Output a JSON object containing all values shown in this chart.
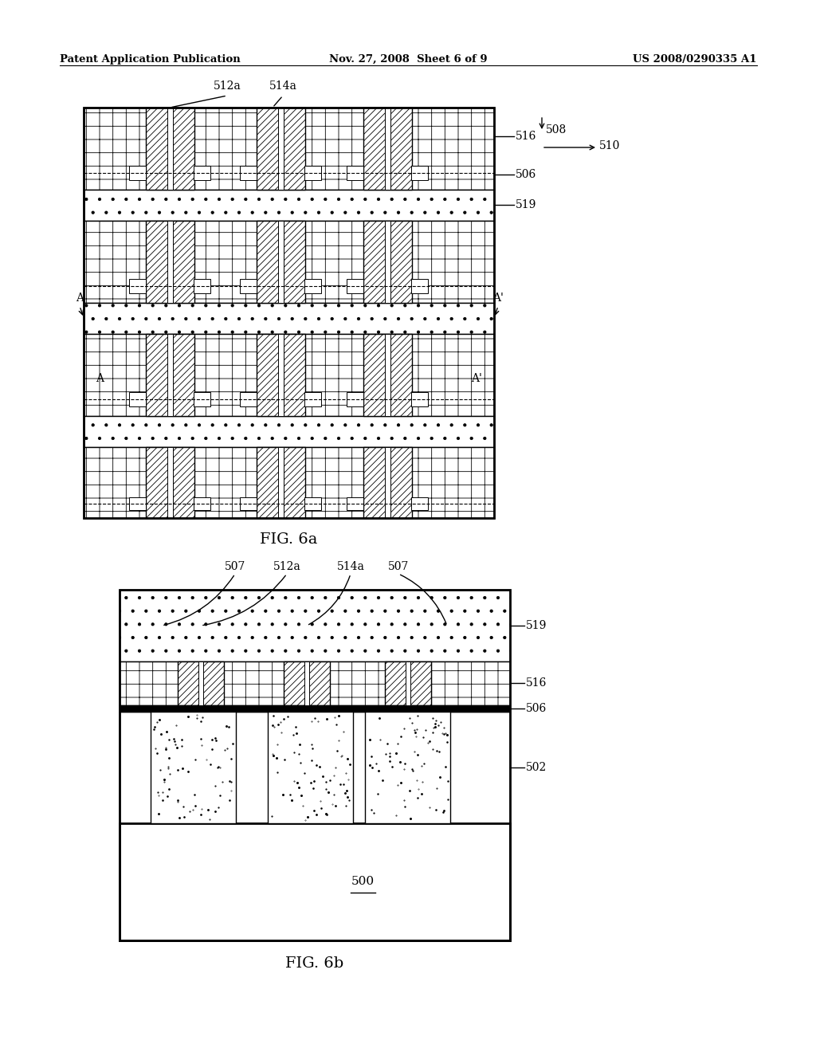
{
  "header_left": "Patent Application Publication",
  "header_mid": "Nov. 27, 2008  Sheet 6 of 9",
  "header_right": "US 2008/0290335 A1",
  "fig6a_label": "FIG. 6a",
  "fig6b_label": "FIG. 6b",
  "bg_color": "#ffffff"
}
